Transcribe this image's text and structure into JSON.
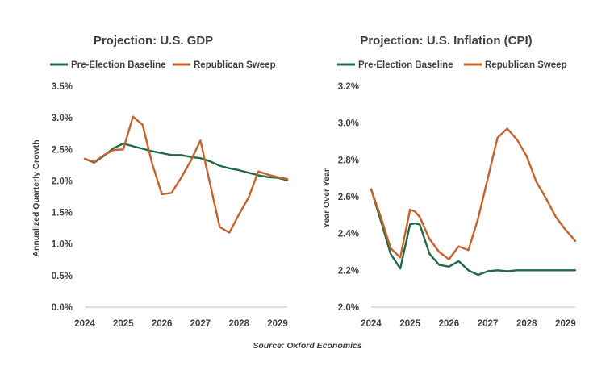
{
  "colors": {
    "baseline": "#1e6b45",
    "sweep": "#c8612a",
    "text": "#404040",
    "axis": "#bfbfbf"
  },
  "source_note": "Source: Oxford Economics",
  "chart_data": [
    {
      "type": "line",
      "title": "Projection:  U.S. GDP",
      "ylabel": "Annualized Quarterly Growth",
      "xlabel": "",
      "ylim": [
        0,
        3.5
      ],
      "xlim": [
        2024,
        2029.25
      ],
      "x_ticks": [
        "2024",
        "2025",
        "2026",
        "2027",
        "2028",
        "2029"
      ],
      "y_ticks": [
        "0.0%",
        "0.5%",
        "1.0%",
        "1.5%",
        "2.0%",
        "2.5%",
        "3.0%",
        "3.5%"
      ],
      "y_tick_values": [
        0,
        0.5,
        1.0,
        1.5,
        2.0,
        2.5,
        3.0,
        3.5
      ],
      "x": [
        2024.0,
        2024.25,
        2024.5,
        2024.75,
        2025.0,
        2025.25,
        2025.5,
        2025.75,
        2026.0,
        2026.25,
        2026.5,
        2026.75,
        2027.0,
        2027.25,
        2027.5,
        2027.75,
        2028.0,
        2028.25,
        2028.5,
        2028.75,
        2029.0,
        2029.25
      ],
      "series": [
        {
          "name": "Pre-Election Baseline",
          "color_key": "baseline",
          "values": [
            2.35,
            2.29,
            2.4,
            2.52,
            2.59,
            2.55,
            2.51,
            2.47,
            2.44,
            2.41,
            2.41,
            2.38,
            2.36,
            2.31,
            2.24,
            2.2,
            2.17,
            2.13,
            2.09,
            2.06,
            2.05,
            2.01
          ]
        },
        {
          "name": "Republican Sweep",
          "color_key": "sweep",
          "values": [
            2.35,
            2.3,
            2.41,
            2.49,
            2.5,
            3.02,
            2.89,
            2.27,
            1.79,
            1.81,
            2.05,
            2.32,
            2.64,
            1.95,
            1.27,
            1.18,
            1.47,
            1.74,
            2.15,
            2.1,
            2.06,
            2.03
          ]
        }
      ]
    },
    {
      "type": "line",
      "title": "Projection:  U.S. Inflation  (CPI)",
      "ylabel": "Year Over Year",
      "xlabel": "",
      "ylim": [
        2.0,
        3.2
      ],
      "xlim": [
        2024,
        2029.25
      ],
      "x_ticks": [
        "2024",
        "2025",
        "2026",
        "2027",
        "2028",
        "2029"
      ],
      "y_ticks": [
        "2.0%",
        "2.2%",
        "2.4%",
        "2.6%",
        "2.8%",
        "3.0%",
        "3.2%"
      ],
      "y_tick_values": [
        2.0,
        2.2,
        2.4,
        2.6,
        2.8,
        3.0,
        3.2
      ],
      "x": [
        2024.0,
        2024.25,
        2024.5,
        2024.75,
        2025.0,
        2025.125,
        2025.25,
        2025.5,
        2025.75,
        2026.0,
        2026.25,
        2026.5,
        2026.75,
        2027.0,
        2027.25,
        2027.5,
        2027.75,
        2028.0,
        2028.25,
        2028.5,
        2028.75,
        2029.0,
        2029.25
      ],
      "series": [
        {
          "name": "Pre-Election Baseline",
          "color_key": "baseline",
          "values": [
            2.64,
            2.47,
            2.29,
            2.21,
            2.45,
            2.455,
            2.45,
            2.29,
            2.23,
            2.22,
            2.25,
            2.2,
            2.175,
            2.195,
            2.2,
            2.195,
            2.2,
            2.2,
            2.2,
            2.2,
            2.2,
            2.2,
            2.2
          ]
        },
        {
          "name": "Republican Sweep",
          "color_key": "sweep",
          "values": [
            2.64,
            2.49,
            2.32,
            2.27,
            2.53,
            2.52,
            2.49,
            2.37,
            2.3,
            2.26,
            2.33,
            2.31,
            2.48,
            2.7,
            2.92,
            2.97,
            2.91,
            2.82,
            2.68,
            2.59,
            2.49,
            2.42,
            2.36
          ]
        }
      ]
    }
  ]
}
